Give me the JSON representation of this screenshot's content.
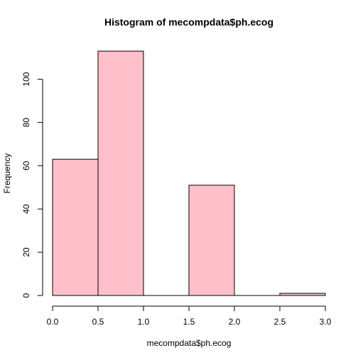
{
  "chart_data": {
    "type": "bar",
    "subtype": "histogram",
    "title": "Histogram of mecompdata$ph.ecog",
    "xlabel": "mecompdata$ph.ecog",
    "ylabel": "Frequency",
    "bins": [
      {
        "x0": 0.0,
        "x1": 0.5,
        "count": 63
      },
      {
        "x0": 0.5,
        "x1": 1.0,
        "count": 113
      },
      {
        "x0": 1.0,
        "x1": 1.5,
        "count": 0
      },
      {
        "x0": 1.5,
        "x1": 2.0,
        "count": 51
      },
      {
        "x0": 2.0,
        "x1": 2.5,
        "count": 0
      },
      {
        "x0": 2.5,
        "x1": 3.0,
        "count": 1
      }
    ],
    "x_ticks": [
      "0.0",
      "0.5",
      "1.0",
      "1.5",
      "2.0",
      "2.5",
      "3.0"
    ],
    "y_ticks": [
      "0",
      "20",
      "40",
      "60",
      "80",
      "100"
    ],
    "xlim": [
      0,
      3
    ],
    "ylim": [
      0,
      113
    ],
    "grid": false,
    "bar_color": "#FFC0CB",
    "edge_color": "#000000"
  }
}
